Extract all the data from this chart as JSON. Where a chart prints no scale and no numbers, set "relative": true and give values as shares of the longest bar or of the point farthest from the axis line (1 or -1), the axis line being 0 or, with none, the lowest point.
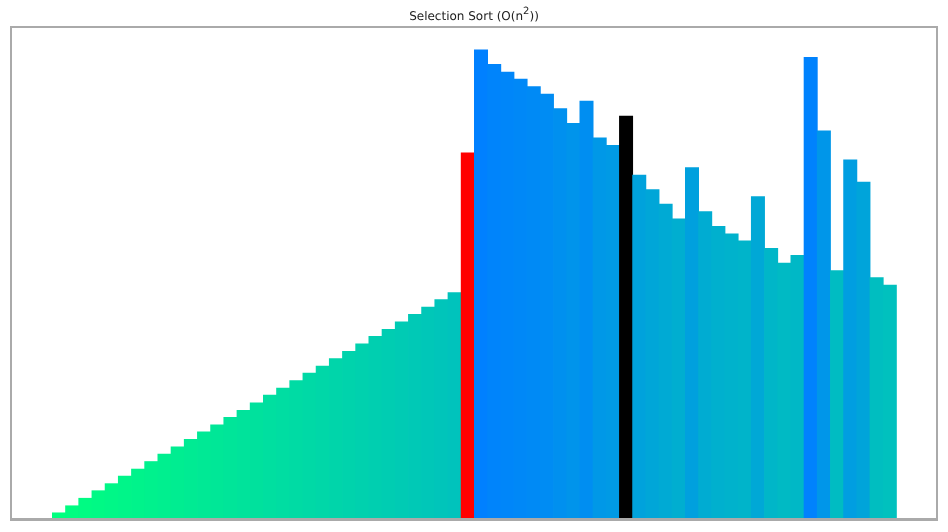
{
  "chart_data": {
    "type": "bar",
    "title": "Selection Sort (O(n$^{2}$))",
    "relative": true,
    "categories": [
      null,
      null,
      null,
      null,
      null,
      null,
      null,
      null,
      null,
      null,
      null,
      null,
      null,
      null,
      null,
      null,
      null,
      null,
      null,
      null,
      null,
      null,
      null,
      null,
      null,
      null,
      null,
      null,
      null,
      null,
      null,
      null,
      null,
      null,
      null,
      null,
      null,
      null,
      null,
      null,
      null,
      null,
      null,
      null,
      null,
      null,
      null,
      null,
      null,
      null,
      null,
      null,
      null,
      null,
      null,
      null,
      null,
      null,
      null,
      null,
      null,
      null,
      null,
      null
    ],
    "values": [
      0.016,
      0.031,
      0.047,
      0.063,
      0.078,
      0.094,
      0.109,
      0.125,
      0.141,
      0.156,
      0.172,
      0.188,
      0.203,
      0.219,
      0.234,
      0.25,
      0.266,
      0.281,
      0.297,
      0.313,
      0.328,
      0.344,
      0.359,
      0.375,
      0.391,
      0.406,
      0.422,
      0.438,
      0.453,
      0.469,
      0.484,
      0.781,
      1,
      0.969,
      0.953,
      0.938,
      0.922,
      0.906,
      0.875,
      0.844,
      0.891,
      0.813,
      0.797,
      0.859,
      0.734,
      0.703,
      0.672,
      0.641,
      0.75,
      0.656,
      0.625,
      0.609,
      0.594,
      0.688,
      0.578,
      0.547,
      0.563,
      0.984,
      0.828,
      0.531,
      0.766,
      0.719,
      0.516,
      0.5
    ],
    "colors": [
      "#00ff7f",
      "#00fd81",
      "#00fb83",
      "#00f985",
      "#00f787",
      "#00f589",
      "#00f38b",
      "#00f18d",
      "#00ef8f",
      "#00ed91",
      "#00eb93",
      "#00e995",
      "#00e797",
      "#00e599",
      "#00e39b",
      "#00e19d",
      "#00dfa0",
      "#00dda2",
      "#00dba4",
      "#00d9a6",
      "#00d7a8",
      "#00d5aa",
      "#00d3ac",
      "#00d1ae",
      "#00cfb0",
      "#00cdb2",
      "#00cbb4",
      "#00c9b6",
      "#00c7b8",
      "#00c5ba",
      "#00c3bc",
      "#ff0000",
      "#0080ff",
      "#0084fb",
      "#0086f9",
      "#0088f7",
      "#008af5",
      "#008cf3",
      "#0090ef",
      "#0094eb",
      "#008ef1",
      "#0098e7",
      "#009ae5",
      "#000000",
      "#00a2dc",
      "#00a6d8",
      "#00aad4",
      "#00aed0",
      "#00a0de",
      "#00acd2",
      "#00b0ce",
      "#00b2cc",
      "#00b4ca",
      "#00a8d6",
      "#00b6c8",
      "#00bac4",
      "#00b8c6",
      "#0082fd",
      "#0096e9",
      "#00bcc2",
      "#009ee1",
      "#00a4da",
      "#00bec0",
      "#00c1be"
    ]
  }
}
